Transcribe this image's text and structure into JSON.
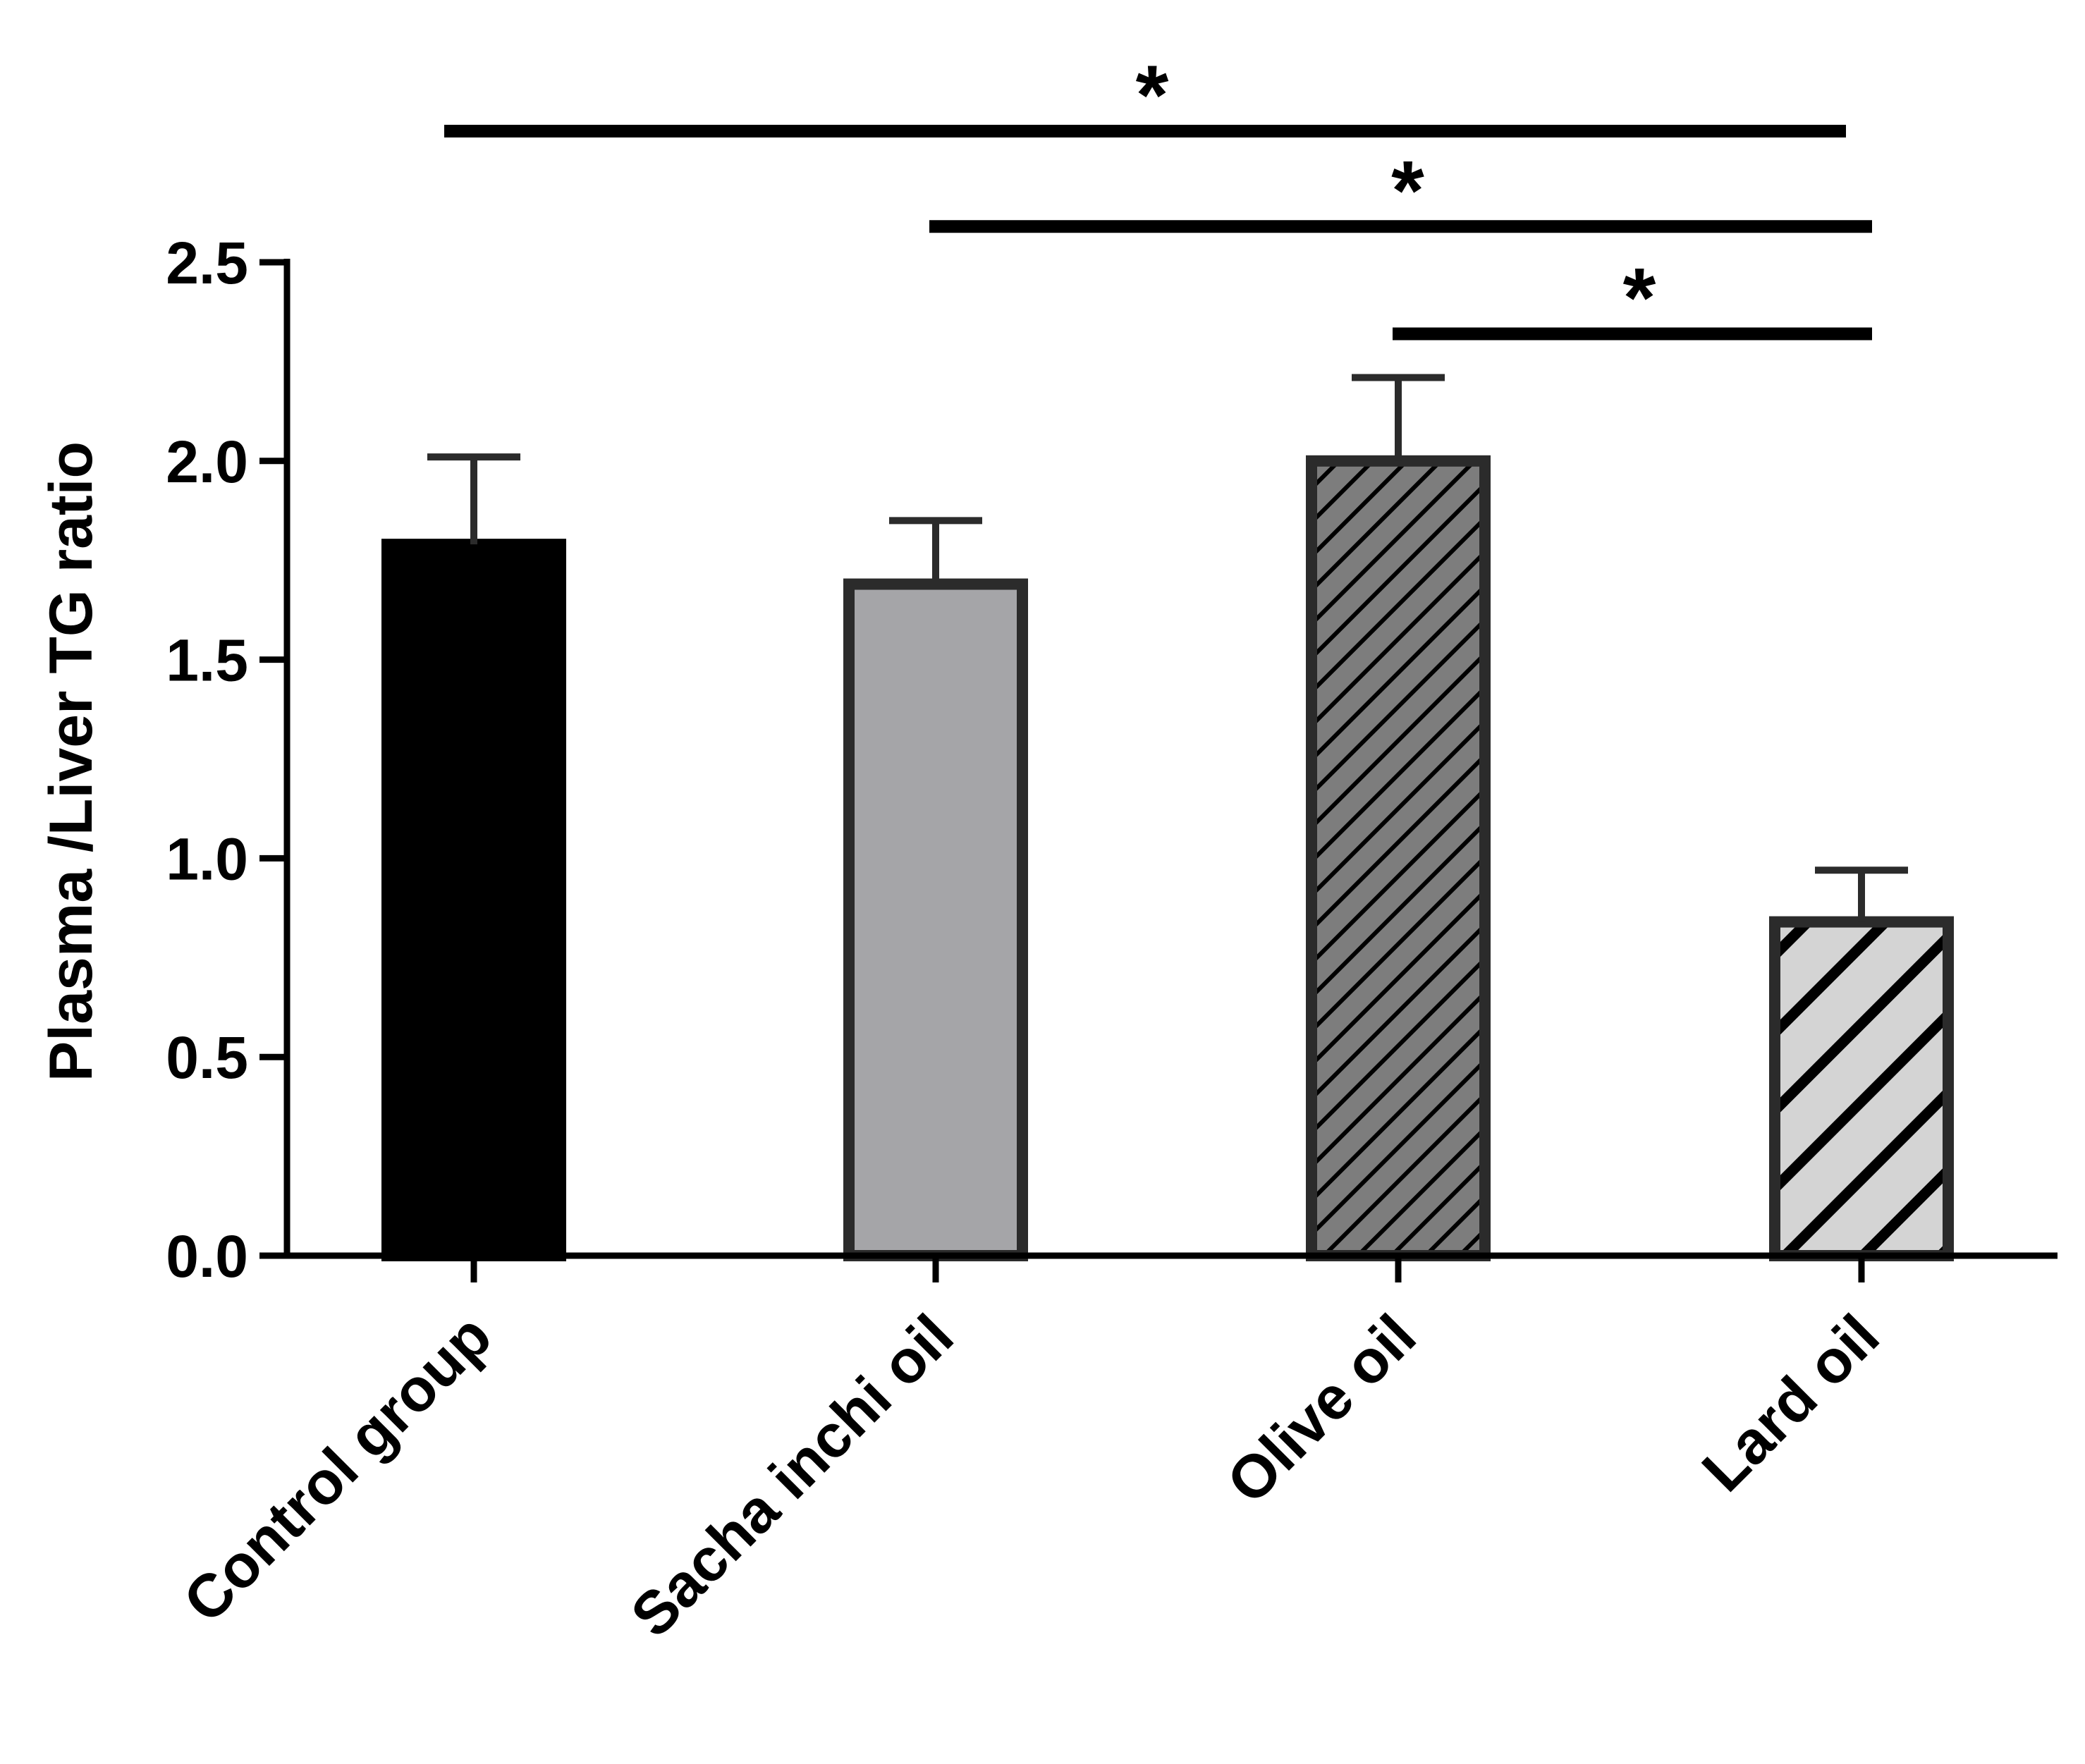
{
  "chart_data": {
    "type": "bar",
    "title": "",
    "xlabel": "",
    "ylabel": "Plasma /Liver TG ratio",
    "ylim": [
      0,
      2.5
    ],
    "yticks": [
      0.0,
      0.5,
      1.0,
      1.5,
      2.0,
      2.5
    ],
    "ytick_labels": [
      "0.0",
      "0.5",
      "1.0",
      "1.5",
      "2.0",
      "2.5"
    ],
    "categories": [
      "Control group",
      "Sacha inchi oil",
      "Olive oil",
      "Lard oil"
    ],
    "values": [
      1.79,
      1.69,
      2.0,
      0.84
    ],
    "errors": [
      0.22,
      0.16,
      0.21,
      0.13
    ],
    "significance": [
      {
        "from": 0,
        "to": 3,
        "label": "*",
        "y": 2.83
      },
      {
        "from": 1,
        "to": 3,
        "label": "*",
        "y": 2.59
      },
      {
        "from": 2,
        "to": 3,
        "label": "*",
        "y": 2.32
      }
    ],
    "bar_styles": [
      {
        "fill": "#000000",
        "pattern": "solid"
      },
      {
        "fill": "#a5a5a8",
        "pattern": "solid"
      },
      {
        "fill": "#7d7d7d",
        "pattern": "dense-diagonal"
      },
      {
        "fill": "#d4d4d4",
        "pattern": "wide-diagonal"
      }
    ],
    "colors": {
      "axis": "#000000",
      "bar_edge": "#2b2b2b"
    }
  }
}
